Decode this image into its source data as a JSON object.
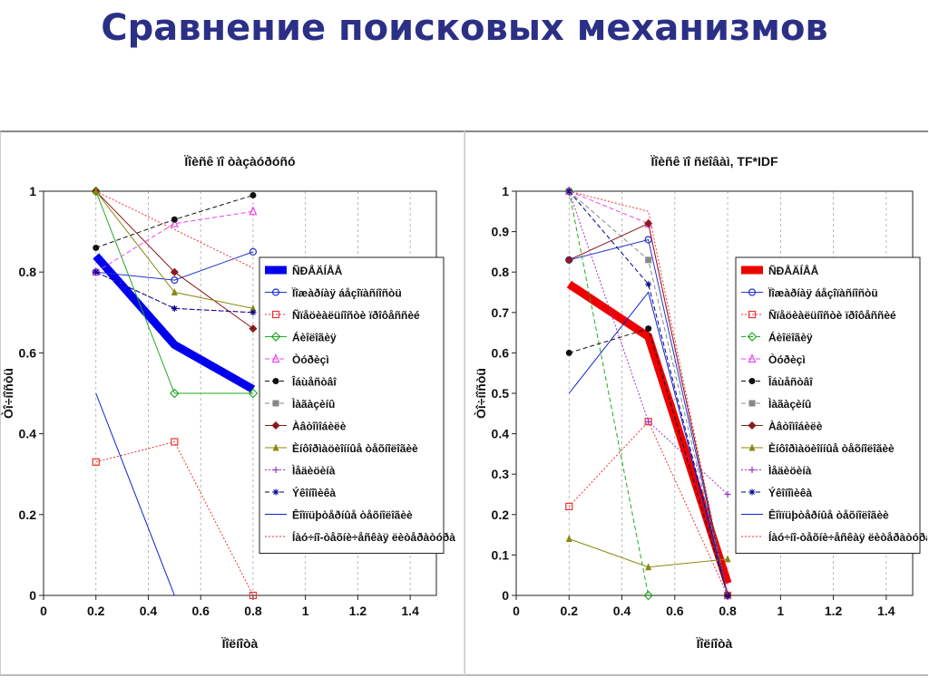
{
  "slide_title": "Сравнение поисковых механизмов",
  "chart_data": [
    {
      "type": "line",
      "title": "Ïîèñê ïî òàçàóðóñó",
      "xlabel": "Ïîëíîòà",
      "ylabel": "Òî÷íîñòü",
      "xlim": [
        0,
        1.5
      ],
      "ylim": [
        0,
        1
      ],
      "xticks": [
        "0",
        "0.2",
        "0.4",
        "0.6",
        "0.8",
        "1",
        "1.2",
        "1.4"
      ],
      "yticks": [
        "0",
        "0.2",
        "0.4",
        "0.6",
        "0.8",
        "1"
      ],
      "legend_position": "right",
      "series": [
        {
          "name": "ÑÐÅÄÍÅÅ",
          "color": "#0000ee",
          "style": "bold",
          "marker": "none",
          "x": [
            0.2,
            0.5,
            0.8
          ],
          "y": [
            0.84,
            0.62,
            0.51
          ]
        },
        {
          "name": "Ïîæàðíàÿ áåçîïàñíîñòü",
          "color": "#2233cc",
          "style": "solid",
          "marker": "circle",
          "x": [
            0.2,
            0.5,
            0.8
          ],
          "y": [
            0.8,
            0.78,
            0.85
          ]
        },
        {
          "name": "Ñïåöèàëüíîñòè ïðîôåññèé",
          "color": "#ee3333",
          "style": "dotted",
          "marker": "square",
          "x": [
            0.2,
            0.5,
            0.8
          ],
          "y": [
            0.33,
            0.38,
            0.0
          ]
        },
        {
          "name": "Áèîëîãèÿ",
          "color": "#22aa22",
          "style": "solid",
          "marker": "diamond",
          "x": [
            0.2,
            0.5,
            0.8
          ],
          "y": [
            1.0,
            0.5,
            0.5
          ]
        },
        {
          "name": "Òóðèçì",
          "color": "#ee44ee",
          "style": "dashed",
          "marker": "triangle",
          "x": [
            0.2,
            0.5,
            0.8
          ],
          "y": [
            0.8,
            0.92,
            0.95
          ]
        },
        {
          "name": "Îáùåñòâî",
          "color": "#111111",
          "style": "dashed",
          "marker": "dot",
          "x": [
            0.2,
            0.5,
            0.8
          ],
          "y": [
            0.86,
            0.93,
            0.99
          ]
        },
        {
          "name": "Ìàãàçèíû",
          "color": "#888888",
          "style": "dashed",
          "marker": "square-filled",
          "x": [],
          "y": []
        },
        {
          "name": "Àâòîìîáèëè",
          "color": "#8b1a1a",
          "style": "solid",
          "marker": "diamond-filled",
          "x": [
            0.2,
            0.5,
            0.8
          ],
          "y": [
            1.0,
            0.8,
            0.66
          ]
        },
        {
          "name": "Èíôîðìàöèîííûå òåõíîëîãèè",
          "color": "#888811",
          "style": "solid",
          "marker": "triangle-filled",
          "x": [
            0.2,
            0.5,
            0.8
          ],
          "y": [
            1.0,
            0.75,
            0.71
          ]
        },
        {
          "name": "Ìåäèöèíà",
          "color": "#9933cc",
          "style": "dotted",
          "marker": "plus",
          "x": [
            0.2,
            0.5,
            0.8
          ],
          "y": [
            0.8,
            0.71,
            0.7
          ]
        },
        {
          "name": "Ýêîíîìèêà",
          "color": "#000088",
          "style": "dashed",
          "marker": "star",
          "x": [
            0.2,
            0.5,
            0.8
          ],
          "y": [
            0.8,
            0.71,
            0.7
          ]
        },
        {
          "name": "Êîìïüþòåðíûå òåõíîëîãèè",
          "color": "#1122cc",
          "style": "solid",
          "marker": "none",
          "x": [
            0.2,
            0.5
          ],
          "y": [
            0.5,
            0.0
          ]
        },
        {
          "name": "Íàó÷íî-òåõíè÷åñêàÿ ëèòåðàòóðà",
          "color": "#ee3333",
          "style": "dotted",
          "marker": "none",
          "x": [
            0.2,
            0.8
          ],
          "y": [
            1.0,
            0.81
          ]
        }
      ]
    },
    {
      "type": "line",
      "title": "Ïîèñê ïî ñëîâàì, TF*IDF",
      "xlabel": "Ïîëíîòà",
      "ylabel": "Òî÷íîñòü",
      "xlim": [
        0,
        1.5
      ],
      "ylim": [
        0,
        1
      ],
      "xticks": [
        "0",
        "0.2",
        "0.4",
        "0.6",
        "0.8",
        "1",
        "1.2",
        "1.4"
      ],
      "yticks": [
        "0",
        "0.1",
        "0.2",
        "0.3",
        "0.4",
        "0.5",
        "0.6",
        "0.7",
        "0.8",
        "0.9",
        "1"
      ],
      "legend_position": "right",
      "series": [
        {
          "name": "ÑÐÅÄÍÅÅ",
          "color": "#ee0000",
          "style": "bold",
          "marker": "none",
          "x": [
            0.2,
            0.5,
            0.8
          ],
          "y": [
            0.77,
            0.64,
            0.03
          ]
        },
        {
          "name": "Ïîæàðíàÿ áåçîïàñíîñòü",
          "color": "#2233cc",
          "style": "solid",
          "marker": "circle",
          "x": [
            0.2,
            0.5,
            0.8
          ],
          "y": [
            0.83,
            0.88,
            0.0
          ]
        },
        {
          "name": "Ñïåöèàëüíîñòè ïðîôåññèé",
          "color": "#ee3333",
          "style": "dotted",
          "marker": "square",
          "x": [
            0.2,
            0.5,
            0.8
          ],
          "y": [
            0.22,
            0.43,
            0.0
          ]
        },
        {
          "name": "Áèîëîãèÿ",
          "color": "#22aa22",
          "style": "dashed",
          "marker": "diamond",
          "x": [
            0.2,
            0.5
          ],
          "y": [
            1.0,
            0.0
          ]
        },
        {
          "name": "Òóðèçì",
          "color": "#ee44ee",
          "style": "dashed",
          "marker": "triangle",
          "x": [
            0.2,
            0.5,
            0.8
          ],
          "y": [
            1.0,
            0.92,
            0.0
          ]
        },
        {
          "name": "Îáùåñòâî",
          "color": "#111111",
          "style": "dashed",
          "marker": "dot",
          "x": [
            0.2,
            0.5,
            0.8
          ],
          "y": [
            0.6,
            0.66,
            0.0
          ]
        },
        {
          "name": "Ìàãàçèíû",
          "color": "#888888",
          "style": "dashed",
          "marker": "square-filled",
          "x": [
            0.2,
            0.5,
            0.8
          ],
          "y": [
            1.0,
            0.83,
            0.0
          ]
        },
        {
          "name": "Àâòîìîáèëè",
          "color": "#8b1a1a",
          "style": "solid",
          "marker": "diamond-filled",
          "x": [
            0.2,
            0.5,
            0.8
          ],
          "y": [
            0.83,
            0.92,
            0.0
          ]
        },
        {
          "name": "Èíôîðìàöèîííûå òåõíîëîãèè",
          "color": "#888811",
          "style": "solid",
          "marker": "triangle-filled",
          "x": [
            0.2,
            0.5,
            0.8
          ],
          "y": [
            0.14,
            0.07,
            0.09
          ]
        },
        {
          "name": "Ìåäèöèíà",
          "color": "#9933cc",
          "style": "dotted",
          "marker": "plus",
          "x": [
            0.2,
            0.5,
            0.8
          ],
          "y": [
            1.0,
            0.43,
            0.25
          ]
        },
        {
          "name": "Ýêîíîìèêà",
          "color": "#000088",
          "style": "dashed",
          "marker": "star",
          "x": [
            0.2,
            0.5,
            0.8
          ],
          "y": [
            1.0,
            0.77,
            0.0
          ]
        },
        {
          "name": "Êîìïüþòåðíûå òåõíîëîãèè",
          "color": "#1122cc",
          "style": "solid",
          "marker": "none",
          "x": [
            0.2,
            0.5,
            0.8
          ],
          "y": [
            0.5,
            0.75,
            0.0
          ]
        },
        {
          "name": "Íàó÷íî-òåõíè÷åñêàÿ ëèòåðàòóðà",
          "color": "#ee3333",
          "style": "dotted",
          "marker": "none",
          "x": [
            0.2,
            0.5,
            0.8
          ],
          "y": [
            1.0,
            0.95,
            0.0
          ]
        }
      ]
    }
  ]
}
